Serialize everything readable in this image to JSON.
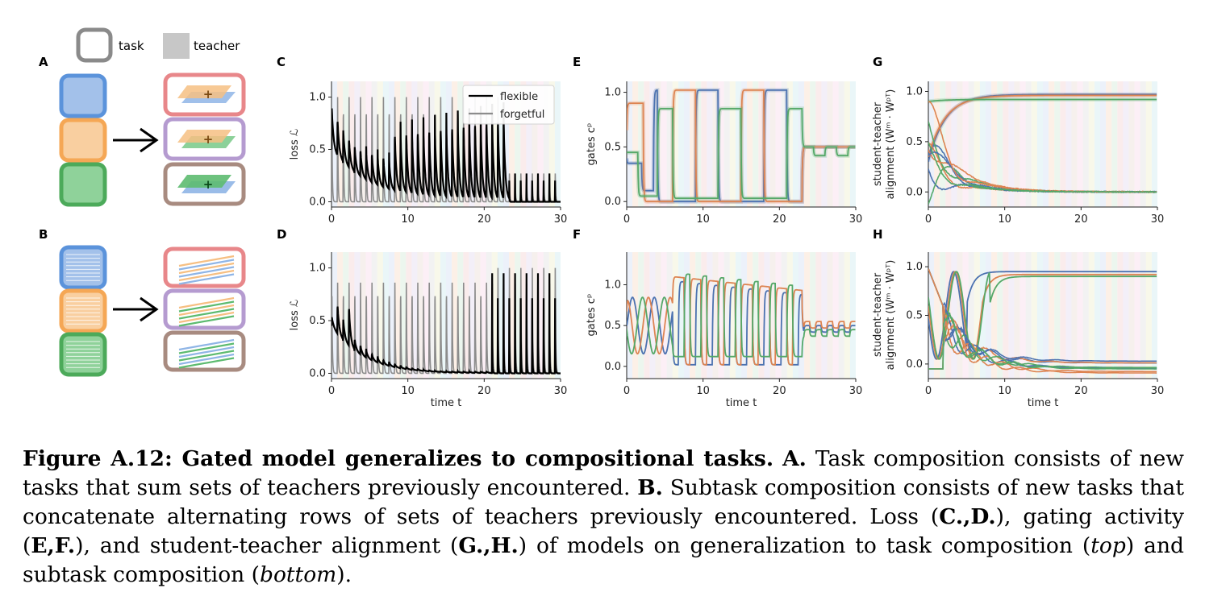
{
  "schematic": {
    "legend_task": "task",
    "legend_teacher": "teacher",
    "panel_a": "A",
    "panel_b": "B"
  },
  "colors": {
    "blue": "#4c72b0",
    "orange": "#dd8452",
    "green": "#55a868",
    "red_box": "#e8878a",
    "purple_box": "#b59bd0",
    "brown_box": "#a88b80",
    "flexible": "#000000",
    "forgetful": "#8c8c8c"
  },
  "chart_data": [
    {
      "panel": "C",
      "type": "line",
      "ylabel": "loss ℒ",
      "xlabel": "",
      "xlim": [
        0,
        30
      ],
      "ylim": [
        -0.05,
        1.15
      ],
      "xticks": [
        "0",
        "10",
        "20",
        "30"
      ],
      "yticks": [
        "0.0",
        "0.5",
        "1.0"
      ],
      "legend": [
        "flexible",
        "forgetful"
      ],
      "legend_position": "top-right",
      "series": [
        {
          "name": "flexible",
          "description": "decaying spikes at each task switch; peaks fall from 0.5 to near 0 by t=15, rise to ~0.25 after t=23"
        },
        {
          "name": "forgetful",
          "description": "spikes to 1.0 at each switch until t≈23, then ~0.25"
        }
      ]
    },
    {
      "panel": "D",
      "type": "line",
      "ylabel": "loss ℒ",
      "xlabel": "time t",
      "xlim": [
        0,
        30
      ],
      "ylim": [
        -0.05,
        1.15
      ],
      "xticks": [
        "0",
        "10",
        "20",
        "30"
      ],
      "yticks": [
        "0.0",
        "0.5",
        "1.0"
      ],
      "series": [
        {
          "name": "flexible",
          "description": "decaying spikes to near 0 by t=12, then spikes to ~0.95 after t=21"
        },
        {
          "name": "forgetful",
          "description": "spikes ~0.85 until t≈21, then ~1.0"
        }
      ]
    },
    {
      "panel": "E",
      "type": "line",
      "ylabel": "gates cᵖ",
      "xlabel": "",
      "xlim": [
        0,
        30
      ],
      "ylim": [
        -0.05,
        1.1
      ],
      "xticks": [
        "0",
        "10",
        "20",
        "30"
      ],
      "yticks": [
        "0.0",
        "0.5",
        "1.0"
      ],
      "series": [
        {
          "name": "blue",
          "description": "gates switching between 0 and 1 across tasks; settle near 0.5 after t=23"
        },
        {
          "name": "orange",
          "description": "gates switching between 0 and 1 across tasks; settle near 0.5 after t=23"
        },
        {
          "name": "green",
          "description": "gates switching between 0 and ~0.85; settle near 0.45-0.5 after t=23"
        }
      ]
    },
    {
      "panel": "F",
      "type": "line",
      "ylabel": "gates cᵖ",
      "xlabel": "time t",
      "xlim": [
        0,
        30
      ],
      "ylim": [
        -0.15,
        1.4
      ],
      "xticks": [
        "0",
        "10",
        "20",
        "30"
      ],
      "yticks": [
        "0.0",
        "0.5",
        "1.0"
      ],
      "series": [
        {
          "name": "blue",
          "description": "oscillating gates up to ~1.1, then ~0.45 after t=23"
        },
        {
          "name": "orange",
          "description": "oscillating gates up to ~1.1, then ~0.5 after t=23"
        },
        {
          "name": "green",
          "description": "oscillating gates up to ~1.15, then ~0.4 after t=23"
        }
      ]
    },
    {
      "panel": "G",
      "type": "line",
      "ylabel": "student-teacher alignment (Wᵐ · Wᵖᵀ)",
      "xlabel": "",
      "xlim": [
        0,
        30
      ],
      "ylim": [
        -0.15,
        1.1
      ],
      "xticks": [
        "0",
        "10",
        "20",
        "30"
      ],
      "yticks": [
        "0.0",
        "0.5",
        "1.0"
      ],
      "series": [
        {
          "name": "aligned",
          "description": "three curves rising from ~0.3 to ~0.95 by t=10"
        },
        {
          "name": "unaligned",
          "description": "remaining curves decaying from ~0.5 to ~0.0 by t=12"
        }
      ]
    },
    {
      "panel": "H",
      "type": "line",
      "ylabel": "student-teacher alignment (Wᵐ · Wᵖᵀ)",
      "xlabel": "time t",
      "xlim": [
        0,
        30
      ],
      "ylim": [
        -0.15,
        1.15
      ],
      "xticks": [
        "0",
        "10",
        "20",
        "30"
      ],
      "yticks": [
        "0.0",
        "0.5",
        "1.0"
      ],
      "series": [
        {
          "name": "aligned",
          "description": "three curves reaching ~0.9-0.95"
        },
        {
          "name": "unaligned",
          "description": "curves decaying to between -0.1 and 0.05"
        }
      ]
    }
  ],
  "caption": {
    "label": "Figure A.12: Gated model generalizes to compositional tasks.",
    "a_label": "A.",
    "a_text": " Task composition consists of new tasks that sum sets of teachers previously encountered. ",
    "b_label": "B.",
    "b_text": " Subtask composition consists of new tasks that concatenate alternating rows of sets of teachers previously encountered. Loss (",
    "cd_label": "C.,D.",
    "mid1": "), gating activity (",
    "ef_label": "E,F.",
    "mid2": "), and student-teacher alignment (",
    "gh_label": "G.,H.",
    "mid3": ") of models on generalization to task composition (",
    "top": "top",
    "mid4": ") and subtask composition (",
    "bottom": "bottom",
    "end": ")."
  }
}
